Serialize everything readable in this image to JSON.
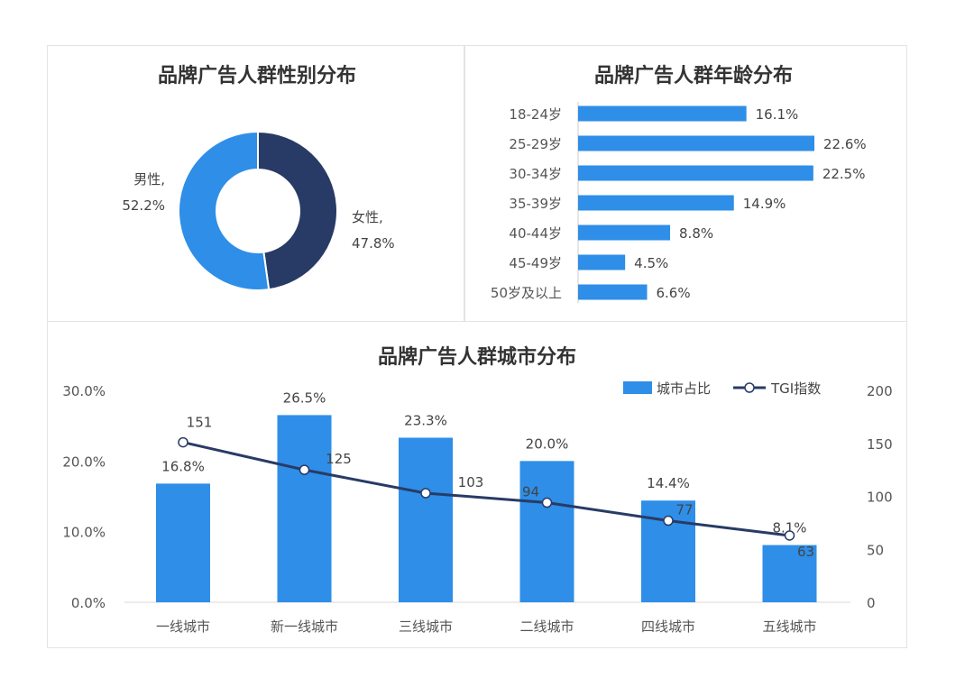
{
  "gender_chart": {
    "title": "品牌广告人群性别分布",
    "chart_data": {
      "type": "pie",
      "slices": [
        {
          "name": "女性",
          "value": 47.8,
          "label": "47.8%",
          "color": "#283b66"
        },
        {
          "name": "男性",
          "value": 52.2,
          "label": "52.2%",
          "color": "#2e8ee8"
        }
      ]
    }
  },
  "age_chart": {
    "title": "品牌广告人群年龄分布",
    "chart_data": {
      "type": "bar",
      "orientation": "horizontal",
      "categories": [
        "18-24岁",
        "25-29岁",
        "30-34岁",
        "35-39岁",
        "40-44岁",
        "45-49岁",
        "50岁及以上"
      ],
      "values": [
        16.1,
        22.6,
        22.5,
        14.9,
        8.8,
        4.5,
        6.6
      ],
      "labels": [
        "16.1%",
        "22.6%",
        "22.5%",
        "14.9%",
        "8.8%",
        "4.5%",
        "6.6%"
      ],
      "color": "#2e8ee8"
    }
  },
  "city_chart": {
    "title": "品牌广告人群城市分布",
    "chart_data": {
      "type": "bar",
      "categories": [
        "一线城市",
        "新一线城市",
        "三线城市",
        "二线城市",
        "四线城市",
        "五线城市"
      ],
      "series": [
        {
          "name": "城市占比",
          "type": "bar",
          "axis": "left",
          "values": [
            16.8,
            26.5,
            23.3,
            20.0,
            14.4,
            8.1
          ],
          "labels": [
            "16.8%",
            "26.5%",
            "23.3%",
            "20.0%",
            "14.4%",
            "8.1%"
          ],
          "color": "#2e8ee8"
        },
        {
          "name": "TGI指数",
          "type": "line",
          "axis": "right",
          "values": [
            151,
            125,
            103,
            94,
            77,
            63
          ],
          "labels": [
            "151",
            "125",
            "103",
            "94",
            "77",
            "63"
          ],
          "color": "#283b66"
        }
      ],
      "y_left": {
        "range": [
          0,
          30
        ],
        "ticks": [
          "0.0%",
          "10.0%",
          "20.0%",
          "30.0%"
        ]
      },
      "y_right": {
        "range": [
          0,
          200
        ],
        "ticks": [
          "0",
          "50",
          "100",
          "150",
          "200"
        ]
      },
      "legend": "top-right",
      "grid": false
    }
  }
}
